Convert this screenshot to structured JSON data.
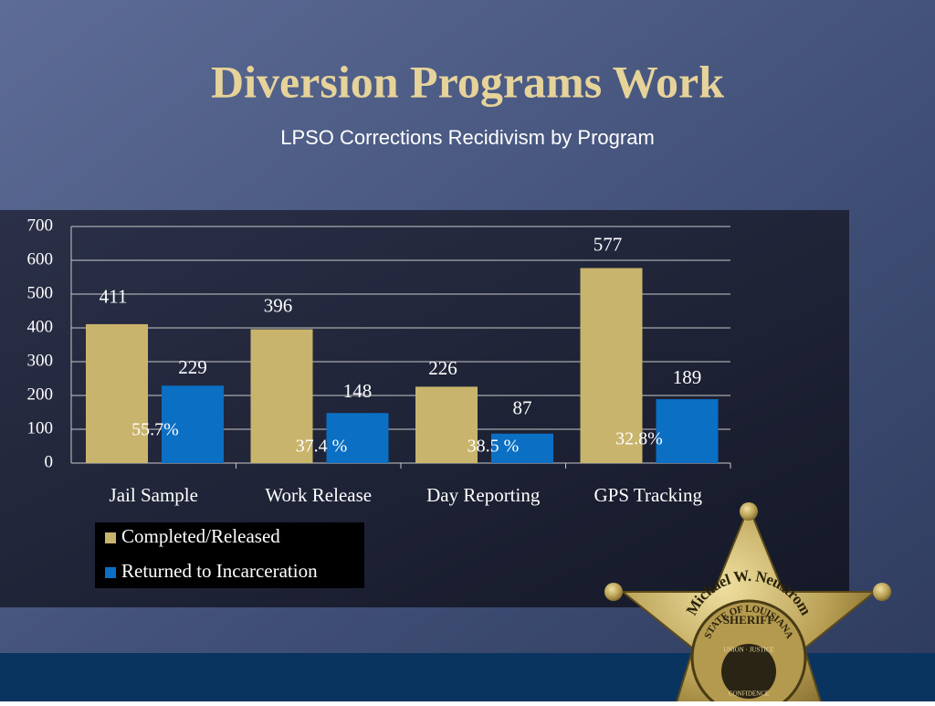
{
  "title": "Diversion Programs Work",
  "subtitle": "LPSO Corrections Recidivism by Program",
  "chart_data": {
    "type": "bar",
    "categories": [
      "Jail Sample",
      "Work Release",
      "Day Reporting",
      "GPS Tracking"
    ],
    "series": [
      {
        "name": "Completed/Released",
        "color": "#c8b46c",
        "values": [
          411,
          396,
          226,
          577
        ]
      },
      {
        "name": "Returned to Incarceration",
        "color": "#0b6fc4",
        "values": [
          229,
          148,
          87,
          189
        ]
      }
    ],
    "annotations": [
      "55.7%",
      "37.4 %",
      "38.5 %",
      "32.8%"
    ],
    "ylim": [
      0,
      700
    ],
    "yticks": [
      0,
      100,
      200,
      300,
      400,
      500,
      600,
      700
    ],
    "grid": true,
    "legend": "bottom-left"
  },
  "badge": {
    "name": "Michael W. Neustrom",
    "rank": "SHERIFF",
    "state": "STATE OF LOUISIANA",
    "motto": "UNION · JUSTICE",
    "motto2": "CONFIDENCE"
  }
}
